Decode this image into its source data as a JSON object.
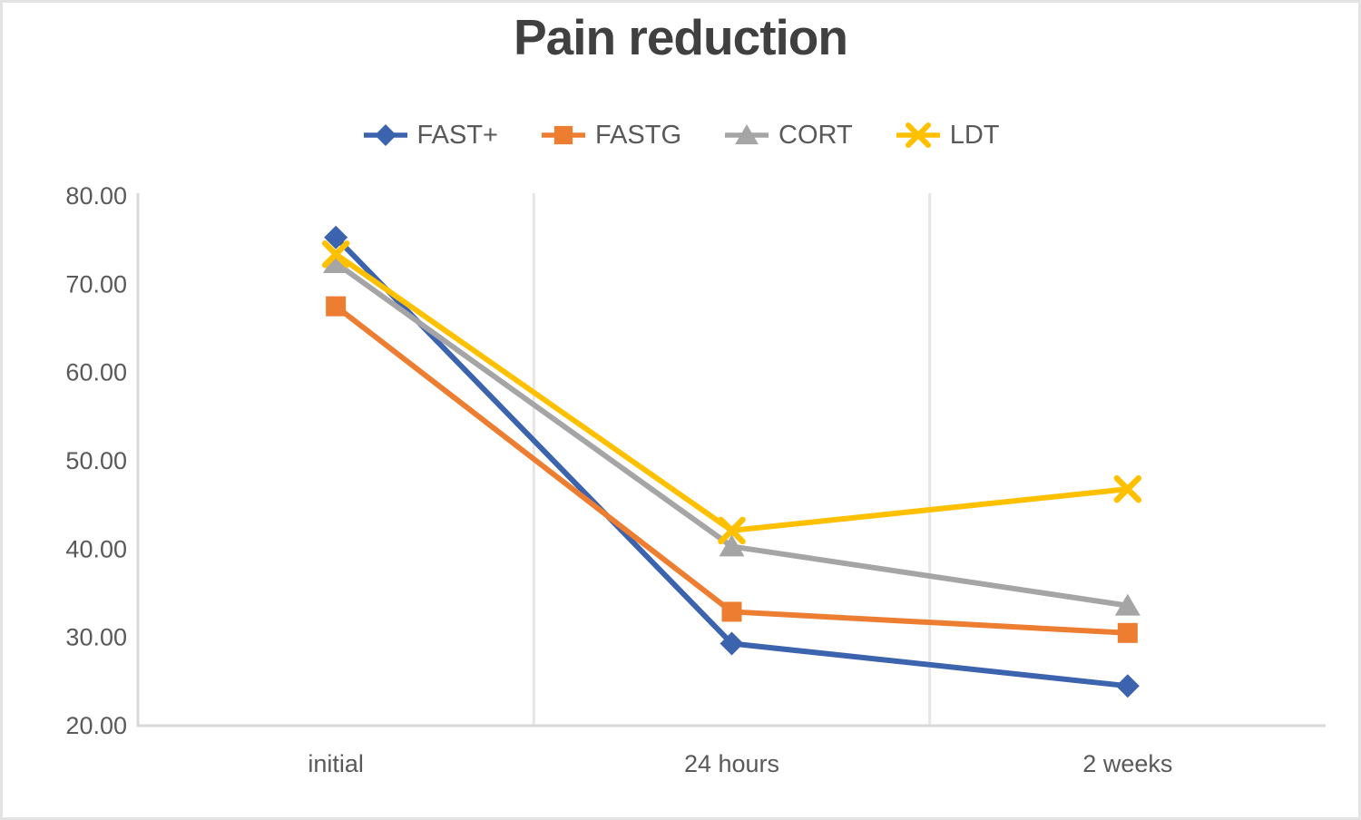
{
  "title": "Pain reduction",
  "chart_data": {
    "type": "line",
    "title": "Pain reduction",
    "xlabel": "",
    "ylabel": "",
    "categories": [
      "initial",
      "24 hours",
      "2 weeks"
    ],
    "series": [
      {
        "name": "FAST+",
        "marker": "diamond",
        "color": "#3C63AE",
        "values": [
          75.3,
          29.3,
          24.5
        ]
      },
      {
        "name": "FASTG",
        "marker": "square",
        "color": "#ED7D31",
        "values": [
          67.5,
          32.9,
          30.5
        ]
      },
      {
        "name": "CORT",
        "marker": "triangle",
        "color": "#A5A5A5",
        "values": [
          72.4,
          40.3,
          33.6
        ]
      },
      {
        "name": "LDT",
        "marker": "x",
        "color": "#FFC000",
        "values": [
          73.4,
          42.1,
          46.8
        ]
      }
    ],
    "ylim": [
      20,
      80
    ],
    "y_ticks": [
      "80.00",
      "70.00",
      "60.00",
      "50.00",
      "40.00",
      "30.00",
      "20.00"
    ],
    "grid": "vertical-category-separators-only",
    "legend_position": "top-center"
  },
  "colors": {
    "title_text": "#404040",
    "axis_text": "#595959",
    "axis_line": "#d9d9d9",
    "gridline": "#e6e6e6",
    "frame_border": "#e3e3e3",
    "background": "#ffffff"
  }
}
